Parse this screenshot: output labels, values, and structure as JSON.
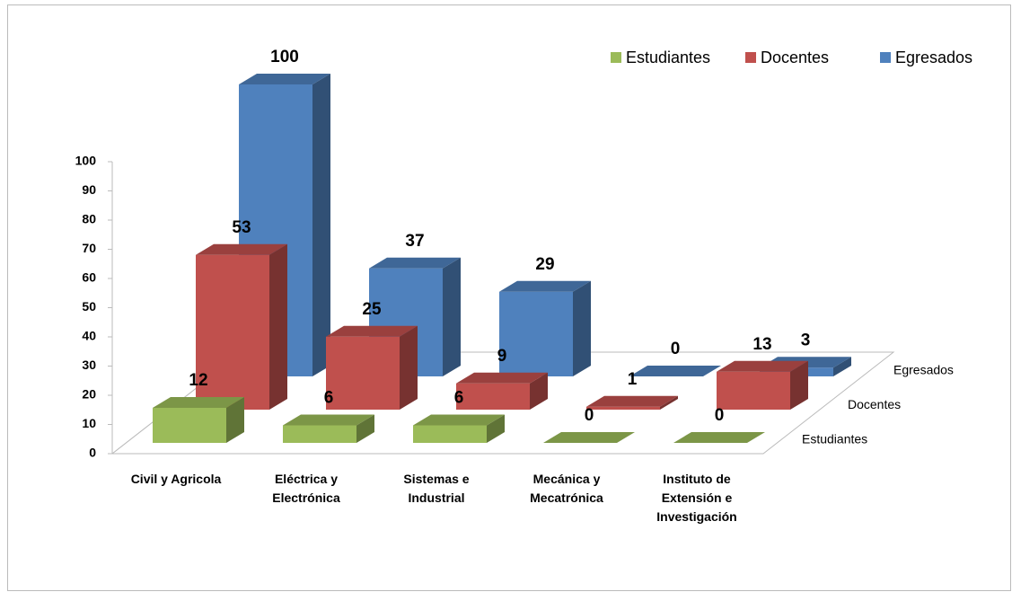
{
  "chart_data": {
    "type": "bar3d",
    "categories": [
      "Civil y Agricola",
      "Eléctrica y Electrónica",
      "Sistemas e Industrial",
      "Mecánica y Mecatrónica",
      "Instituto de Extensión e Investigación"
    ],
    "series": [
      {
        "name": "Estudiantes",
        "color": "#9bbb59",
        "values": [
          12,
          6,
          6,
          0,
          0
        ]
      },
      {
        "name": "Docentes",
        "color": "#c0504d",
        "values": [
          53,
          25,
          9,
          1,
          13
        ]
      },
      {
        "name": "Egresados",
        "color": "#4f81bd",
        "values": [
          100,
          37,
          29,
          0,
          3
        ]
      }
    ],
    "ylim": [
      0,
      100
    ],
    "yticks": [
      0,
      10,
      20,
      30,
      40,
      50,
      60,
      70,
      80,
      90,
      100
    ],
    "legend": "top-right"
  }
}
